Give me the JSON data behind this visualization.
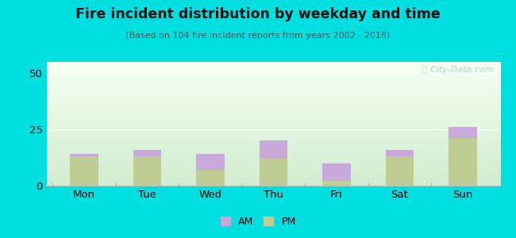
{
  "categories": [
    "Mon",
    "Tue",
    "Wed",
    "Thu",
    "Fri",
    "Sat",
    "Sun"
  ],
  "pm_values": [
    13,
    13,
    7,
    12,
    2,
    13,
    21
  ],
  "am_values": [
    1,
    3,
    7,
    8,
    8,
    3,
    5
  ],
  "am_color": "#c9a8dc",
  "pm_color": "#bfcc94",
  "title": "Fire incident distribution by weekday and time",
  "subtitle": "(Based on 104 fire incident reports from years 2002 - 2018)",
  "ylim": [
    0,
    55
  ],
  "yticks": [
    0,
    25,
    50
  ],
  "bar_width": 0.45,
  "outer_bg": "#00e0e0",
  "watermark": "Ⓜ City-Data.com"
}
